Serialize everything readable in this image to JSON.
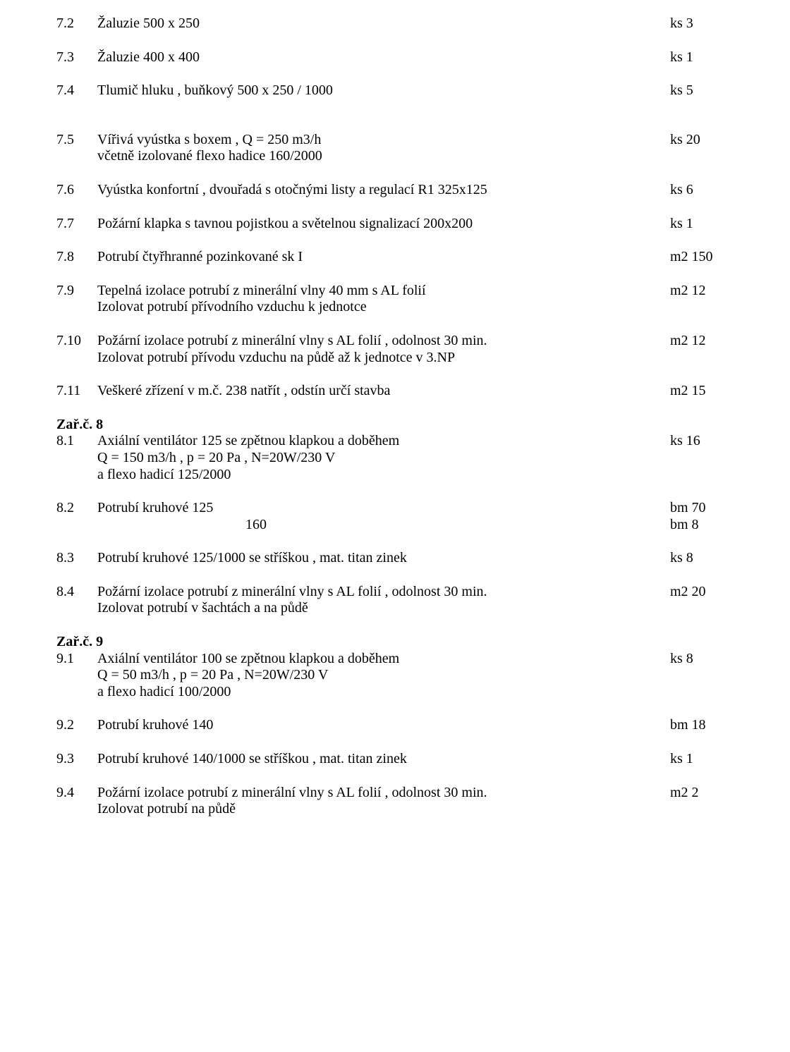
{
  "font": {
    "family": "Times New Roman",
    "size_pt": 15,
    "color": "#000000"
  },
  "background_color": "#ffffff",
  "rows": {
    "r7_2": {
      "num": "7.2",
      "desc": "Žaluzie 500 x 250",
      "val": "ks 3"
    },
    "r7_3": {
      "num": "7.3",
      "desc": "Žaluzie 400 x 400",
      "val": "ks 1"
    },
    "r7_4": {
      "num": "7.4",
      "desc": "Tlumič hluku , buňkový 500 x 250 / 1000",
      "val": "ks 5"
    },
    "r7_5": {
      "num": "7.5",
      "desc1": "Vířivá vyústka s boxem , Q = 250 m3/h",
      "desc2": "včetně izolované flexo hadice 160/2000",
      "val": "ks 20"
    },
    "r7_6": {
      "num": "7.6",
      "desc": "Vyústka konfortní , dvouřadá s otočnými listy a regulací R1 325x125",
      "val": "ks 6"
    },
    "r7_7": {
      "num": "7.7",
      "desc": "Požární klapka  s tavnou pojistkou a světelnou signalizací 200x200",
      "val": "ks 1"
    },
    "r7_8": {
      "num": "7.8",
      "desc": "Potrubí čtyřhranné pozinkované sk  I",
      "val": "m2 150"
    },
    "r7_9": {
      "num": "7.9",
      "desc1": "Tepelná izolace potrubí  z minerální vlny 40 mm s AL folií",
      "desc2": "Izolovat potrubí přívodního vzduchu k jednotce",
      "val": "m2  12"
    },
    "r7_10": {
      "num": "7.10",
      "desc1": "Požární izolace potrubí z minerální vlny s AL folií , odolnost 30 min.",
      "desc2": "Izolovat potrubí přívodu vzduchu na půdě až k jednotce v 3.NP",
      "val": "m2 12"
    },
    "r7_11": {
      "num": "7.11",
      "desc": "Veškeré zřízení v m.č. 238 natřít , odstín určí stavba",
      "val": "m2 15"
    },
    "h8": "Zař.č. 8",
    "r8_1": {
      "num": "8.1",
      "desc1": "Axiální ventilátor 125 se zpětnou klapkou a doběhem",
      "desc2": "Q = 150 m3/h , p = 20 Pa , N=20W/230 V",
      "desc3": "a flexo hadicí  125/2000",
      "val": "ks 16"
    },
    "r8_2": {
      "num": "8.2",
      "desc": "Potrubí kruhové 125",
      "val": "bm 70",
      "sub_desc": "160",
      "sub_val": "bm 8"
    },
    "r8_3": {
      "num": "8.3",
      "desc": "Potrubí kruhové 125/1000 se stříškou , mat. titan zinek",
      "val": "ks 8"
    },
    "r8_4": {
      "num": "8.4",
      "desc1": "Požární izolace potrubí z minerální vlny s AL folií , odolnost 30 min.",
      "desc2": "Izolovat potrubí v šachtách a na půdě",
      "val": "m2  20"
    },
    "h9": "Zař.č. 9",
    "r9_1": {
      "num": "9.1",
      "desc1": "Axiální ventilátor 100 se zpětnou klapkou a doběhem",
      "desc2": "Q = 50 m3/h , p = 20 Pa , N=20W/230 V",
      "desc3": "a flexo hadicí  100/2000",
      "val": "ks 8"
    },
    "r9_2": {
      "num": "9.2",
      "desc": "Potrubí kruhové 140",
      "val": "bm 18"
    },
    "r9_3": {
      "num": "9.3",
      "desc": "Potrubí kruhové 140/1000 se stříškou , mat. titan zinek",
      "val": "ks 1"
    },
    "r9_4": {
      "num": "9.4",
      "desc1": "Požární izolace potrubí z minerální vlny s AL folií , odolnost 30 min.",
      "desc2": "Izolovat potrubí  na půdě",
      "val": "m2  2"
    }
  }
}
